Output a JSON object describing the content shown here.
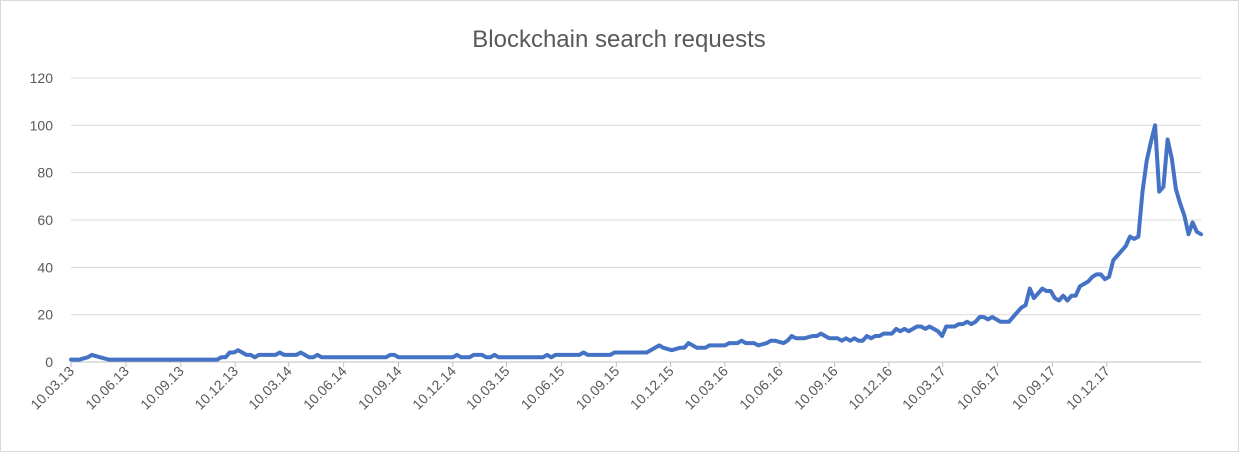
{
  "chart_data": {
    "type": "line",
    "title": "Blockchain search requests",
    "xlabel": "",
    "ylabel": "",
    "ylim": [
      0,
      120
    ],
    "yticks": [
      0,
      20,
      40,
      60,
      80,
      100,
      120
    ],
    "xtick_labels": [
      "10.03.13",
      "10.06.13",
      "10.09.13",
      "10.12.13",
      "10.03.14",
      "10.06.14",
      "10.09.14",
      "10.12.14",
      "10.03.15",
      "10.06.15",
      "10.09.15",
      "10.12.15",
      "10.03.16",
      "10.06.16",
      "10.09.16",
      "10.12.16",
      "10.03.17",
      "10.06.17",
      "10.09.17",
      "10.12.17"
    ],
    "grid": true,
    "legend": "none",
    "line_color": "#4472c4",
    "series": [
      {
        "points": [
          [
            "10.03.13",
            1
          ],
          [
            "24.03.13",
            1
          ],
          [
            "07.04.13",
            2
          ],
          [
            "14.04.13",
            3
          ],
          [
            "28.04.13",
            2
          ],
          [
            "12.05.13",
            1
          ],
          [
            "10.06.13",
            1
          ],
          [
            "10.07.13",
            1
          ],
          [
            "10.08.13",
            1
          ],
          [
            "10.09.13",
            1
          ],
          [
            "10.10.13",
            1
          ],
          [
            "01.11.13",
            1
          ],
          [
            "10.11.13",
            1
          ],
          [
            "17.11.13",
            2
          ],
          [
            "24.11.13",
            2
          ],
          [
            "01.12.13",
            4
          ],
          [
            "08.12.13",
            4
          ],
          [
            "15.12.13",
            5
          ],
          [
            "22.12.13",
            4
          ],
          [
            "29.12.13",
            3
          ],
          [
            "05.01.14",
            3
          ],
          [
            "12.01.14",
            2
          ],
          [
            "19.01.14",
            3
          ],
          [
            "02.02.14",
            3
          ],
          [
            "16.02.14",
            3
          ],
          [
            "23.02.14",
            4
          ],
          [
            "02.03.14",
            3
          ],
          [
            "16.03.14",
            3
          ],
          [
            "23.03.14",
            3
          ],
          [
            "30.03.14",
            4
          ],
          [
            "06.04.14",
            3
          ],
          [
            "13.04.14",
            2
          ],
          [
            "20.04.14",
            2
          ],
          [
            "27.04.14",
            3
          ],
          [
            "04.05.14",
            2
          ],
          [
            "10.06.14",
            2
          ],
          [
            "10.07.14",
            2
          ],
          [
            "20.08.14",
            2
          ],
          [
            "27.08.14",
            3
          ],
          [
            "03.09.14",
            3
          ],
          [
            "10.09.14",
            2
          ],
          [
            "10.10.14",
            2
          ],
          [
            "10.11.14",
            2
          ],
          [
            "10.12.14",
            2
          ],
          [
            "17.12.14",
            3
          ],
          [
            "24.12.14",
            2
          ],
          [
            "07.01.15",
            2
          ],
          [
            "14.01.15",
            3
          ],
          [
            "28.01.15",
            3
          ],
          [
            "04.02.15",
            2
          ],
          [
            "11.02.15",
            2
          ],
          [
            "18.02.15",
            3
          ],
          [
            "25.02.15",
            2
          ],
          [
            "10.03.15",
            2
          ],
          [
            "10.04.15",
            2
          ],
          [
            "10.05.15",
            2
          ],
          [
            "17.05.15",
            3
          ],
          [
            "24.05.15",
            2
          ],
          [
            "31.05.15",
            3
          ],
          [
            "10.06.15",
            3
          ],
          [
            "10.07.15",
            3
          ],
          [
            "17.07.15",
            4
          ],
          [
            "24.07.15",
            3
          ],
          [
            "10.08.15",
            3
          ],
          [
            "31.08.15",
            3
          ],
          [
            "07.09.15",
            4
          ],
          [
            "10.10.15",
            4
          ],
          [
            "31.10.15",
            4
          ],
          [
            "14.11.15",
            6
          ],
          [
            "21.11.15",
            7
          ],
          [
            "28.11.15",
            6
          ],
          [
            "12.12.15",
            5
          ],
          [
            "26.12.15",
            6
          ],
          [
            "02.01.16",
            6
          ],
          [
            "09.01.16",
            8
          ],
          [
            "16.01.16",
            7
          ],
          [
            "23.01.16",
            6
          ],
          [
            "06.02.16",
            6
          ],
          [
            "13.02.16",
            7
          ],
          [
            "10.03.16",
            7
          ],
          [
            "17.03.16",
            8
          ],
          [
            "31.03.16",
            8
          ],
          [
            "07.04.16",
            9
          ],
          [
            "14.04.16",
            8
          ],
          [
            "28.04.16",
            8
          ],
          [
            "05.05.16",
            7
          ],
          [
            "19.05.16",
            8
          ],
          [
            "26.05.16",
            9
          ],
          [
            "02.06.16",
            9
          ],
          [
            "16.06.16",
            8
          ],
          [
            "23.06.16",
            9
          ],
          [
            "30.06.16",
            11
          ],
          [
            "07.07.16",
            10
          ],
          [
            "21.07.16",
            10
          ],
          [
            "04.08.16",
            11
          ],
          [
            "11.08.16",
            11
          ],
          [
            "18.08.16",
            12
          ],
          [
            "25.08.16",
            11
          ],
          [
            "01.09.16",
            10
          ],
          [
            "15.09.16",
            10
          ],
          [
            "22.09.16",
            9
          ],
          [
            "29.09.16",
            10
          ],
          [
            "06.10.16",
            9
          ],
          [
            "13.10.16",
            10
          ],
          [
            "20.10.16",
            9
          ],
          [
            "27.10.16",
            9
          ],
          [
            "03.11.16",
            11
          ],
          [
            "10.11.16",
            10
          ],
          [
            "17.11.16",
            11
          ],
          [
            "24.11.16",
            11
          ],
          [
            "01.12.16",
            12
          ],
          [
            "15.12.16",
            12
          ],
          [
            "22.12.16",
            14
          ],
          [
            "29.12.16",
            13
          ],
          [
            "05.01.17",
            14
          ],
          [
            "12.01.17",
            13
          ],
          [
            "19.01.17",
            14
          ],
          [
            "26.01.17",
            15
          ],
          [
            "02.02.17",
            15
          ],
          [
            "09.02.17",
            14
          ],
          [
            "16.02.17",
            15
          ],
          [
            "23.02.17",
            14
          ],
          [
            "02.03.17",
            13
          ],
          [
            "09.03.17",
            11
          ],
          [
            "16.03.17",
            15
          ],
          [
            "23.03.17",
            15
          ],
          [
            "30.03.17",
            15
          ],
          [
            "06.04.17",
            16
          ],
          [
            "13.04.17",
            16
          ],
          [
            "20.04.17",
            17
          ],
          [
            "27.04.17",
            16
          ],
          [
            "04.05.17",
            17
          ],
          [
            "11.05.17",
            19
          ],
          [
            "18.05.17",
            19
          ],
          [
            "25.05.17",
            18
          ],
          [
            "01.06.17",
            19
          ],
          [
            "08.06.17",
            18
          ],
          [
            "15.06.17",
            17
          ],
          [
            "22.06.17",
            17
          ],
          [
            "29.06.17",
            17
          ],
          [
            "06.07.17",
            19
          ],
          [
            "13.07.17",
            21
          ],
          [
            "20.07.17",
            23
          ],
          [
            "27.07.17",
            24
          ],
          [
            "03.08.17",
            31
          ],
          [
            "10.08.17",
            27
          ],
          [
            "17.08.17",
            29
          ],
          [
            "24.08.17",
            31
          ],
          [
            "31.08.17",
            30
          ],
          [
            "07.09.17",
            30
          ],
          [
            "14.09.17",
            27
          ],
          [
            "21.09.17",
            26
          ],
          [
            "28.09.17",
            28
          ],
          [
            "05.10.17",
            26
          ],
          [
            "12.10.17",
            28
          ],
          [
            "19.10.17",
            28
          ],
          [
            "26.10.17",
            32
          ],
          [
            "02.11.17",
            33
          ],
          [
            "09.11.17",
            34
          ],
          [
            "16.11.17",
            36
          ],
          [
            "23.11.17",
            37
          ],
          [
            "30.11.17",
            37
          ],
          [
            "07.12.17",
            35
          ],
          [
            "14.12.17",
            36
          ],
          [
            "21.12.17",
            43
          ],
          [
            "28.12.17",
            45
          ],
          [
            "04.01.18",
            47
          ],
          [
            "11.01.18",
            49
          ],
          [
            "18.01.18",
            53
          ],
          [
            "25.01.18",
            52
          ],
          [
            "01.02.18",
            53
          ],
          [
            "08.02.18",
            72
          ],
          [
            "15.02.18",
            85
          ],
          [
            "22.02.18",
            93
          ],
          [
            "01.03.18",
            100
          ],
          [
            "08.03.18",
            72
          ],
          [
            "15.03.18",
            74
          ],
          [
            "22.03.18",
            94
          ],
          [
            "29.03.18",
            86
          ],
          [
            "05.04.18",
            73
          ],
          [
            "12.04.18",
            67
          ],
          [
            "19.04.18",
            62
          ],
          [
            "26.04.18",
            54
          ],
          [
            "03.05.18",
            59
          ],
          [
            "10.05.18",
            55
          ],
          [
            "17.05.18",
            54
          ]
        ]
      }
    ]
  }
}
